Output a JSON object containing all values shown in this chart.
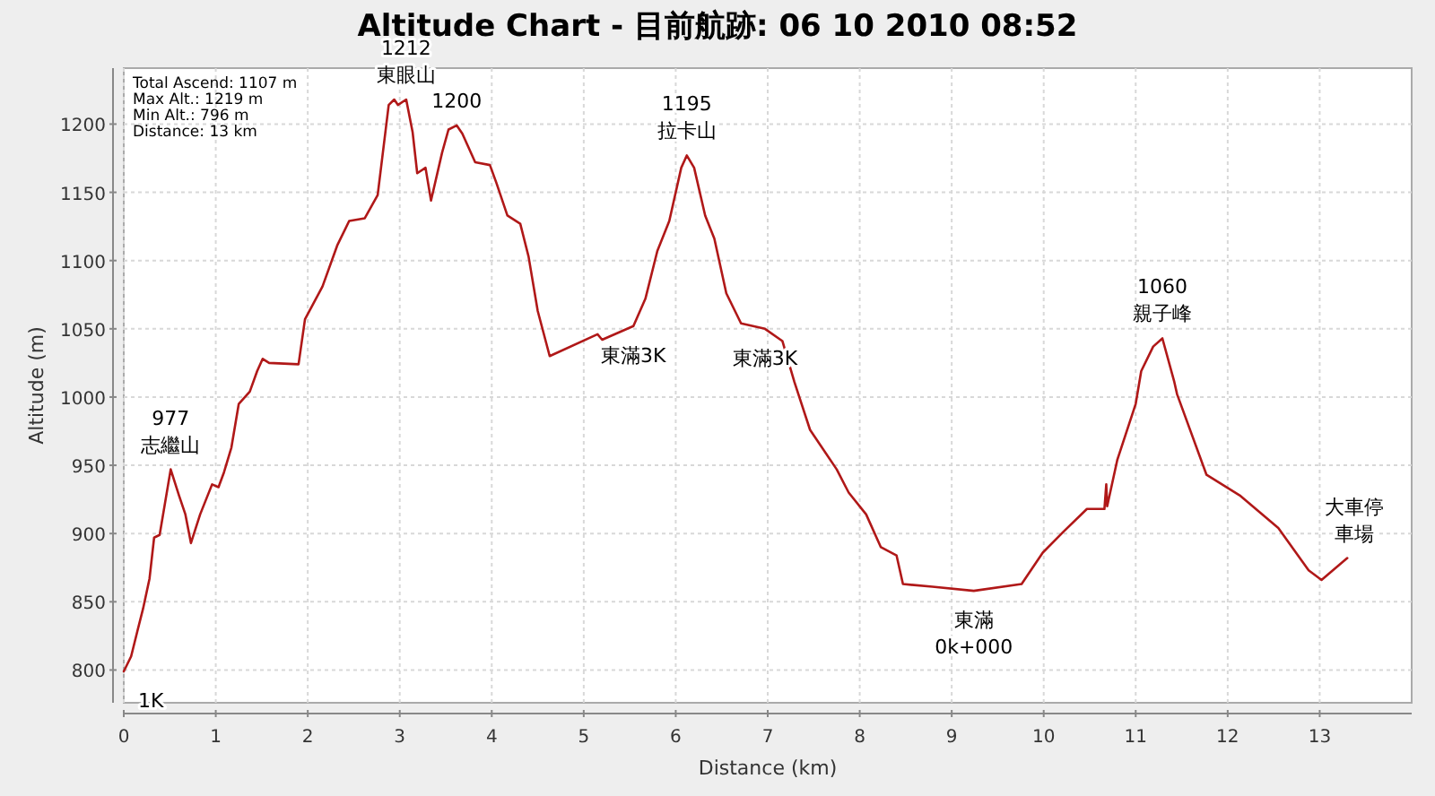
{
  "chart_data": {
    "type": "line",
    "title": "Altitude Chart - 目前航跡: 06 10 2010 08:52",
    "xlabel": "Distance (km)",
    "ylabel": "Altitude (m)",
    "xlim": [
      0,
      14
    ],
    "ylim": [
      776,
      1241
    ],
    "xticks": [
      0,
      1,
      2,
      3,
      4,
      5,
      6,
      7,
      8,
      9,
      10,
      11,
      12,
      13
    ],
    "yticks": [
      800,
      850,
      900,
      950,
      1000,
      1050,
      1100,
      1150,
      1200
    ],
    "grid": true,
    "series": [
      {
        "color": "#b01818",
        "x": [
          0,
          0.08,
          0.15,
          0.21,
          0.28,
          0.33,
          0.39,
          0.51,
          0.6,
          0.67,
          0.73,
          0.83,
          0.96,
          1.03,
          1.09,
          1.17,
          1.25,
          1.37,
          1.45,
          1.51,
          1.58,
          1.9,
          1.97,
          2.16,
          2.32,
          2.45,
          2.62,
          2.76,
          2.88,
          2.94,
          2.98,
          3.07,
          3.14,
          3.19,
          3.28,
          3.34,
          3.46,
          3.53,
          3.62,
          3.68,
          3.82,
          3.98,
          4.05,
          4.17,
          4.31,
          4.4,
          4.5,
          4.63,
          5.15,
          5.2,
          5.54,
          5.67,
          5.8,
          5.93,
          6.06,
          6.12,
          6.2,
          6.32,
          6.42,
          6.55,
          6.71,
          6.97,
          7.16,
          7.29,
          7.46,
          7.75,
          7.88,
          8.07,
          8.23,
          8.4,
          8.47,
          8.79,
          9.24,
          9.76,
          9.99,
          10.21,
          10.47,
          10.66,
          10.68,
          10.69,
          10.8,
          11.0,
          11.06,
          11.19,
          11.29,
          11.42,
          11.45,
          11.77,
          12.13,
          12.55,
          12.88,
          13.02,
          13.3
        ],
        "values": [
          799,
          810,
          829,
          845,
          867,
          897,
          899,
          947,
          928,
          914,
          893,
          914,
          936,
          934,
          945,
          963,
          995,
          1004,
          1019,
          1028,
          1025,
          1024,
          1057,
          1081,
          1111,
          1129,
          1131,
          1148,
          1214,
          1218,
          1214,
          1218,
          1194,
          1164,
          1168,
          1144,
          1179,
          1196,
          1199,
          1193,
          1172,
          1170,
          1157,
          1133,
          1127,
          1103,
          1063,
          1030,
          1046,
          1042,
          1052,
          1072,
          1107,
          1129,
          1168,
          1177,
          1168,
          1133,
          1116,
          1076,
          1054,
          1050,
          1041,
          1011,
          976,
          947,
          930,
          914,
          890,
          884,
          863,
          861,
          858,
          863,
          886,
          901,
          918,
          918,
          936,
          920,
          954,
          995,
          1019,
          1037,
          1043,
          1011,
          1002,
          943,
          928,
          904,
          873,
          866,
          882
        ]
      }
    ],
    "annotations": [
      "Total Ascend: 1107 m",
      "Max Alt.: 1219 m",
      "Min Alt.: 796 m",
      "Distance: 13 km",
      {
        "text": "1212\n東眼山",
        "x": 3.07,
        "y": 1218
      },
      {
        "text": "1200",
        "x": 3.62,
        "y": 1199
      },
      {
        "text": "1195\n拉卡山",
        "x": 6.12,
        "y": 1177
      },
      {
        "text": "東滿3K",
        "x": 5.54,
        "y": 1052
      },
      {
        "text": "東滿3K",
        "x": 6.97,
        "y": 1050
      },
      {
        "text": "977\n志繼山",
        "x": 0.51,
        "y": 947
      },
      {
        "text": "1K",
        "x": 0,
        "y": 799
      },
      {
        "text": "東滿\n0k+000",
        "x": 9.24,
        "y": 858
      },
      {
        "text": "1060\n親子峰",
        "x": 11.29,
        "y": 1043
      },
      {
        "text": "大車停車場",
        "x": 13.3,
        "y": 882
      }
    ]
  }
}
